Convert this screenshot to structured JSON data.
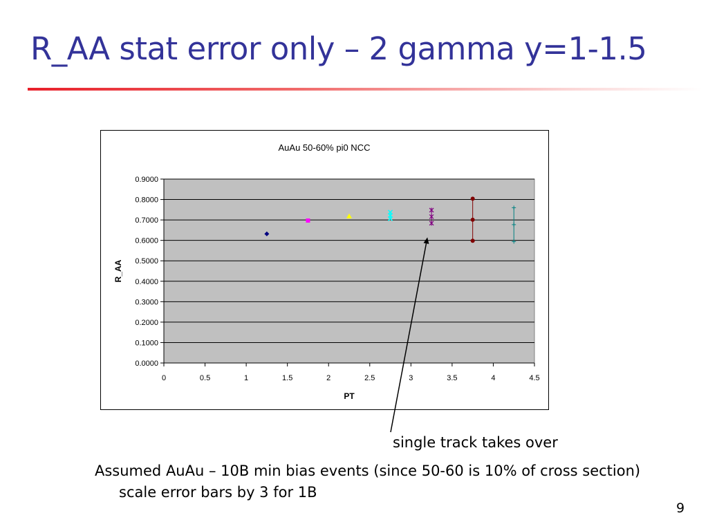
{
  "slide": {
    "title": "R_AA stat error only – 2 gamma y=1-1.5",
    "annotation": "single track takes over",
    "body_line_1": "Assumed AuAu – 10B min bias events (since 50-60 is 10% of cross section)",
    "body_line_2": "scale error bars by 3 for 1B",
    "page_number": "9"
  },
  "chart_data": {
    "type": "scatter",
    "title": "AuAu 50-60% pi0 NCC",
    "xlabel": "PT",
    "ylabel": "R_AA",
    "xlim": [
      0,
      4.5
    ],
    "ylim": [
      0,
      0.9
    ],
    "x_ticks": [
      0,
      0.5,
      1,
      1.5,
      2,
      2.5,
      3,
      3.5,
      4,
      4.5
    ],
    "x_tick_labels": [
      "0",
      "0.5",
      "1",
      "1.5",
      "2",
      "2.5",
      "3",
      "3.5",
      "4",
      "4.5"
    ],
    "y_ticks": [
      0,
      0.1,
      0.2,
      0.3,
      0.4,
      0.5,
      0.6,
      0.7,
      0.8,
      0.9
    ],
    "y_tick_labels": [
      "0.0000",
      "0.1000",
      "0.2000",
      "0.3000",
      "0.4000",
      "0.5000",
      "0.6000",
      "0.7000",
      "0.8000",
      "0.9000"
    ],
    "grid": "horizontal",
    "plot_background": "#c0c0c0",
    "legend": "none",
    "series": [
      {
        "x": 1.25,
        "y": 0.632,
        "err": 0.002,
        "marker": "diamond",
        "color": "#000080"
      },
      {
        "x": 1.75,
        "y": 0.697,
        "err": 0.004,
        "marker": "square",
        "color": "#ff00ff"
      },
      {
        "x": 2.25,
        "y": 0.718,
        "err": 0.007,
        "marker": "triangle",
        "color": "#ffff00"
      },
      {
        "x": 2.75,
        "y": 0.722,
        "err": 0.016,
        "marker": "cross",
        "color": "#00ffff"
      },
      {
        "x": 3.25,
        "y": 0.716,
        "err": 0.032,
        "marker": "star",
        "color": "#800080"
      },
      {
        "x": 3.75,
        "y": 0.701,
        "err": 0.103,
        "marker": "circle",
        "color": "#800000"
      },
      {
        "x": 4.25,
        "y": 0.677,
        "err": 0.083,
        "marker": "plus",
        "color": "#008080"
      }
    ],
    "annotation_arrow_target": {
      "x": 3.2,
      "y": 0.615
    }
  }
}
